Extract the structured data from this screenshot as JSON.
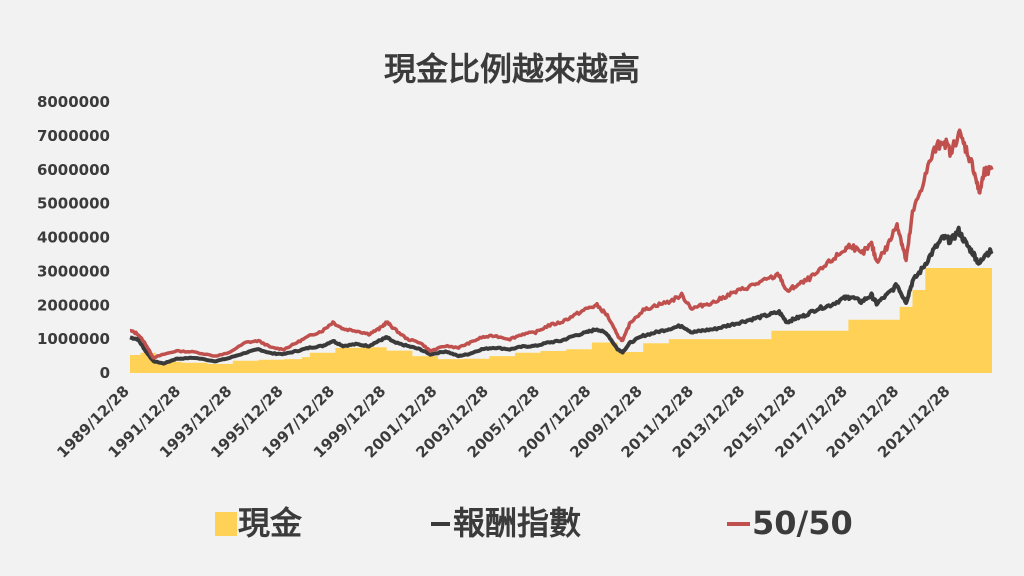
{
  "chart_data": {
    "type": "line",
    "title": "現金比例越來越高",
    "xlabel": "",
    "ylabel": "",
    "ylim": [
      0,
      8000000
    ],
    "yticks": [
      0,
      1000000,
      2000000,
      3000000,
      4000000,
      5000000,
      6000000,
      7000000,
      8000000
    ],
    "xticks": [
      "1989/12/28",
      "1991/12/28",
      "1993/12/28",
      "1995/12/28",
      "1997/12/28",
      "1999/12/28",
      "2001/12/28",
      "2003/12/28",
      "2005/12/28",
      "2007/12/28",
      "2009/12/28",
      "2011/12/28",
      "2013/12/28",
      "2015/12/28",
      "2017/12/28",
      "2019/12/28",
      "2021/12/28"
    ],
    "grid": false,
    "legend_position": "bottom",
    "series": [
      {
        "name": "現金",
        "type": "area-step",
        "color": "#ffd257",
        "x": [
          1989.99,
          1990.4,
          1991.0,
          1992.0,
          1993.0,
          1994.0,
          1995.0,
          1996.0,
          1996.7,
          1997.0,
          1998.0,
          1999.0,
          2000.0,
          2001.0,
          2002.0,
          2003.0,
          2004.0,
          2005.0,
          2006.0,
          2007.0,
          2008.0,
          2009.0,
          2010.0,
          2011.0,
          2012.0,
          2013.0,
          2014.0,
          2015.0,
          2016.0,
          2017.0,
          2018.0,
          2019.0,
          2019.5,
          2020.0,
          2020.5,
          2021.0,
          2022.0,
          2023.0,
          2023.6
        ],
        "y": [
          530000,
          600000,
          330000,
          300000,
          270000,
          360000,
          390000,
          410000,
          470000,
          600000,
          740000,
          760000,
          660000,
          500000,
          410000,
          420000,
          500000,
          600000,
          650000,
          700000,
          900000,
          620000,
          880000,
          1000000,
          1000000,
          1000000,
          1000000,
          1250000,
          1250000,
          1250000,
          1570000,
          1570000,
          1570000,
          1950000,
          2450000,
          3100000,
          3100000,
          3100000,
          3100000
        ]
      },
      {
        "name": "報酬指數",
        "type": "line",
        "color": "#3a3a3a",
        "x": [
          1989.99,
          1990.3,
          1990.6,
          1990.9,
          1991.3,
          1991.8,
          1992.5,
          1993.3,
          1993.8,
          1994.5,
          1995.0,
          1995.5,
          1996.0,
          1996.5,
          1997.0,
          1997.5,
          1997.9,
          1998.3,
          1998.8,
          1999.3,
          1999.7,
          2000.0,
          2000.3,
          2000.8,
          2001.3,
          2001.7,
          2002.3,
          2002.8,
          2003.2,
          2003.7,
          2004.2,
          2004.8,
          2005.3,
          2005.8,
          2006.3,
          2006.8,
          2007.3,
          2007.8,
          2008.2,
          2008.6,
          2009.0,
          2009.2,
          2009.5,
          2010.0,
          2010.5,
          2011.0,
          2011.5,
          2011.9,
          2012.3,
          2012.8,
          2013.3,
          2013.8,
          2014.3,
          2014.8,
          2015.3,
          2015.6,
          2015.9,
          2016.3,
          2016.8,
          2017.3,
          2017.8,
          2018.1,
          2018.5,
          2018.9,
          2019.1,
          2019.5,
          2019.9,
          2020.1,
          2020.25,
          2020.5,
          2020.9,
          2021.3,
          2021.7,
          2022.0,
          2022.3,
          2022.6,
          2022.9,
          2023.1,
          2023.3,
          2023.6
        ],
        "y": [
          1050000,
          1000000,
          650000,
          350000,
          280000,
          420000,
          450000,
          350000,
          430000,
          600000,
          700000,
          580000,
          560000,
          650000,
          750000,
          800000,
          950000,
          800000,
          850000,
          800000,
          950000,
          1050000,
          900000,
          800000,
          700000,
          550000,
          640000,
          500000,
          560000,
          700000,
          750000,
          700000,
          780000,
          800000,
          900000,
          950000,
          1100000,
          1200000,
          1300000,
          1150000,
          700000,
          620000,
          900000,
          1100000,
          1200000,
          1300000,
          1400000,
          1200000,
          1250000,
          1300000,
          1400000,
          1500000,
          1600000,
          1700000,
          1800000,
          1500000,
          1600000,
          1700000,
          1900000,
          2000000,
          2200000,
          2250000,
          2100000,
          2300000,
          2050000,
          2300000,
          2600000,
          2300000,
          2100000,
          2700000,
          3100000,
          3600000,
          4000000,
          3900000,
          4200000,
          3800000,
          3500000,
          3200000,
          3500000,
          3600000
        ]
      },
      {
        "name": "50/50",
        "type": "line",
        "color": "#c0504d",
        "x": [
          1989.99,
          1990.3,
          1990.6,
          1990.9,
          1991.3,
          1991.8,
          1992.5,
          1993.3,
          1993.8,
          1994.5,
          1995.0,
          1995.5,
          1996.0,
          1996.5,
          1997.0,
          1997.5,
          1997.9,
          1998.3,
          1998.8,
          1999.3,
          1999.7,
          2000.0,
          2000.3,
          2000.8,
          2001.3,
          2001.7,
          2002.3,
          2002.8,
          2003.2,
          2003.7,
          2004.2,
          2004.8,
          2005.3,
          2005.8,
          2006.3,
          2006.8,
          2007.3,
          2007.8,
          2008.2,
          2008.6,
          2009.0,
          2009.2,
          2009.5,
          2010.0,
          2010.5,
          2011.0,
          2011.5,
          2011.9,
          2012.3,
          2012.8,
          2013.3,
          2013.8,
          2014.3,
          2014.8,
          2015.3,
          2015.6,
          2015.9,
          2016.3,
          2016.8,
          2017.3,
          2017.8,
          2018.1,
          2018.5,
          2018.9,
          2019.1,
          2019.5,
          2019.9,
          2020.1,
          2020.25,
          2020.5,
          2020.9,
          2021.3,
          2021.7,
          2022.0,
          2022.3,
          2022.6,
          2022.9,
          2023.1,
          2023.3,
          2023.6
        ],
        "y": [
          1250000,
          1150000,
          850000,
          450000,
          550000,
          650000,
          620000,
          500000,
          580000,
          900000,
          950000,
          750000,
          700000,
          900000,
          1100000,
          1250000,
          1500000,
          1300000,
          1250000,
          1150000,
          1300000,
          1500000,
          1300000,
          1000000,
          900000,
          650000,
          800000,
          750000,
          880000,
          1050000,
          1100000,
          1000000,
          1150000,
          1200000,
          1400000,
          1500000,
          1700000,
          1900000,
          2000000,
          1700000,
          1100000,
          950000,
          1500000,
          1850000,
          2000000,
          2100000,
          2300000,
          1900000,
          2000000,
          2100000,
          2300000,
          2450000,
          2600000,
          2750000,
          2900000,
          2400000,
          2550000,
          2700000,
          2950000,
          3300000,
          3600000,
          3800000,
          3500000,
          3800000,
          3300000,
          3700000,
          4400000,
          3800000,
          3300000,
          4700000,
          5600000,
          6500000,
          6900000,
          6500000,
          7100000,
          6600000,
          6000000,
          5300000,
          5900000,
          6000000
        ]
      }
    ]
  }
}
